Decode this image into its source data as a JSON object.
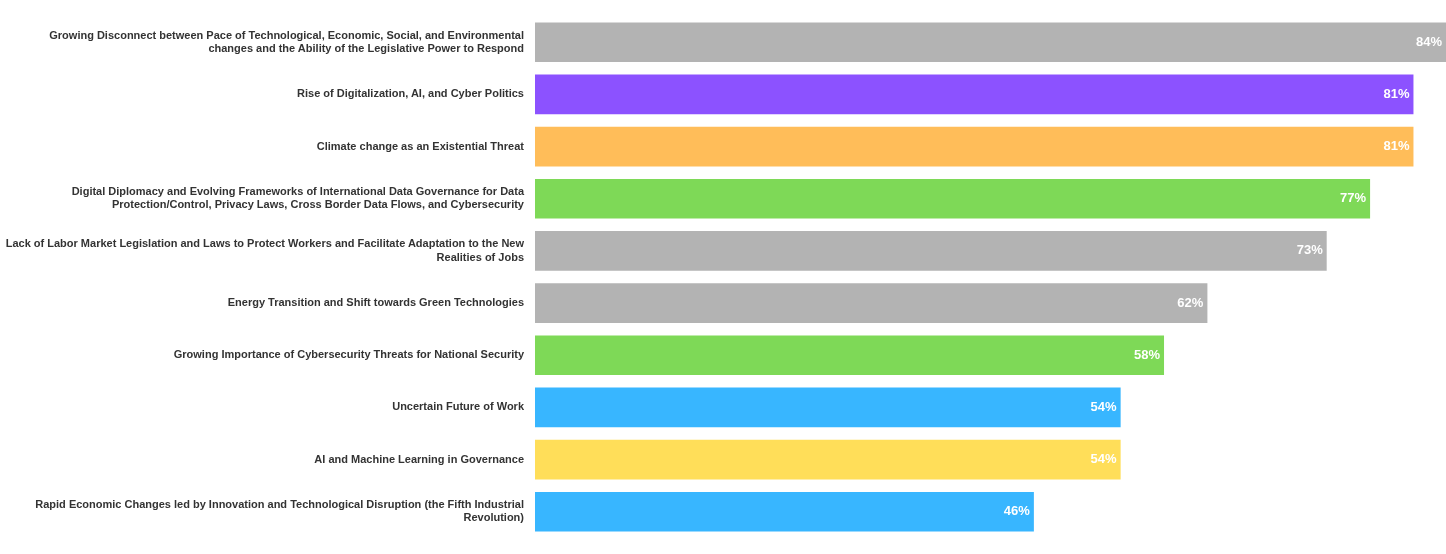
{
  "chart_data": {
    "type": "bar",
    "orientation": "horizontal",
    "categories": [
      "Growing Disconnect between Pace of Technological, Economic, Social, and Environmental changes and the Ability of the Legislative Power to Respond",
      "Rise of Digitalization, AI, and Cyber Politics",
      "Climate change as an Existential Threat",
      "Digital Diplomacy and Evolving Frameworks of International Data Governance for Data Protection/Control, Privacy Laws, Cross Border Data Flows, and Cybersecurity",
      "Lack of Labor Market Legislation and Laws to Protect Workers and Facilitate Adaptation to the New Realities of Jobs",
      "Energy Transition and Shift towards Green Technologies",
      "Growing Importance of Cybersecurity Threats for National Security",
      "Uncertain Future of Work",
      "AI and Machine Learning in Governance",
      "Rapid Economic Changes led by Innovation and Technological Disruption (the Fifth Industrial Revolution)"
    ],
    "values": [
      84,
      81,
      81,
      77,
      73,
      62,
      58,
      54,
      54,
      46
    ],
    "value_labels": [
      "84%",
      "81%",
      "81%",
      "77%",
      "73%",
      "62%",
      "58%",
      "54%",
      "54%",
      "46%"
    ],
    "colors": [
      "#b3b3b3",
      "#8c52ff",
      "#ffbd59",
      "#7ed957",
      "#b3b3b3",
      "#b3b3b3",
      "#7ed957",
      "#38b6ff",
      "#ffde59",
      "#38b6ff"
    ],
    "xlim": [
      0,
      84
    ],
    "tick_labels": "y",
    "grid": false,
    "legend": false
  }
}
